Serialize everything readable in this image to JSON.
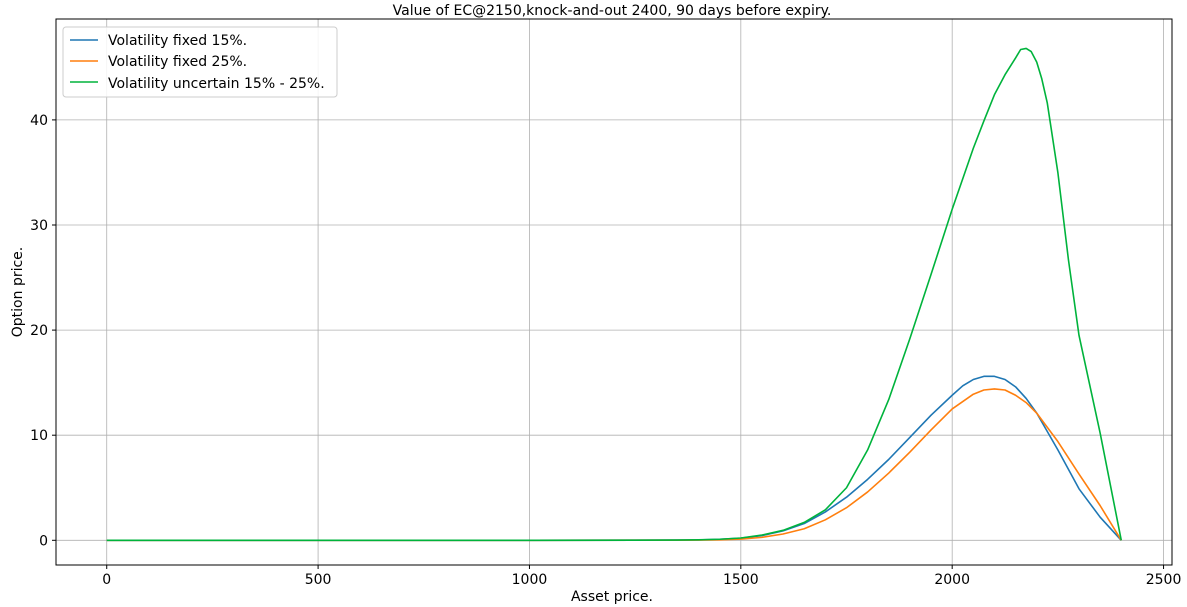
{
  "chart_data": {
    "type": "line",
    "title": "Value of EC@2150,knock-and-out 2400, 90 days before expiry.",
    "xlabel": "Asset price.",
    "ylabel": "Option price.",
    "xlim": [
      -120,
      2520
    ],
    "ylim": [
      -2.35,
      49.6
    ],
    "xticks": [
      0,
      500,
      1000,
      1500,
      2000,
      2500
    ],
    "yticks": [
      0,
      10,
      20,
      30,
      40
    ],
    "grid": true,
    "legend_position": "top-left",
    "series": [
      {
        "name": "Volatility fixed 15%.",
        "color": "#1f77b4",
        "x": [
          0,
          1000,
          1350,
          1400,
          1450,
          1500,
          1550,
          1600,
          1650,
          1700,
          1750,
          1800,
          1850,
          1900,
          1950,
          2000,
          2025,
          2050,
          2075,
          2100,
          2125,
          2150,
          2175,
          2200,
          2250,
          2300,
          2350,
          2400
        ],
        "y": [
          0,
          0,
          0.02,
          0.04,
          0.09,
          0.2,
          0.45,
          0.9,
          1.6,
          2.7,
          4.1,
          5.8,
          7.7,
          9.8,
          11.9,
          13.8,
          14.7,
          15.3,
          15.6,
          15.6,
          15.3,
          14.6,
          13.5,
          12.1,
          8.6,
          4.9,
          2.2,
          0
        ]
      },
      {
        "name": "Volatility fixed 25%.",
        "color": "#ff7f0e",
        "x": [
          0,
          1000,
          1350,
          1400,
          1450,
          1500,
          1550,
          1600,
          1650,
          1700,
          1750,
          1800,
          1850,
          1900,
          1950,
          2000,
          2050,
          2075,
          2100,
          2125,
          2150,
          2175,
          2200,
          2250,
          2300,
          2350,
          2400
        ],
        "y": [
          0,
          0,
          0.01,
          0.02,
          0.05,
          0.12,
          0.28,
          0.6,
          1.1,
          1.95,
          3.1,
          4.6,
          6.4,
          8.4,
          10.5,
          12.5,
          13.9,
          14.3,
          14.4,
          14.3,
          13.8,
          13.1,
          12.1,
          9.4,
          6.3,
          3.3,
          0
        ]
      },
      {
        "name": "Volatility uncertain 15% - 25%.",
        "color": "#00b33c",
        "x": [
          0,
          1000,
          1350,
          1400,
          1450,
          1500,
          1550,
          1600,
          1650,
          1700,
          1750,
          1800,
          1850,
          1900,
          1950,
          2000,
          2050,
          2075,
          2100,
          2125,
          2150,
          2162,
          2175,
          2187,
          2200,
          2212,
          2225,
          2250,
          2275,
          2300,
          2350,
          2400
        ],
        "y": [
          0,
          0,
          0.02,
          0.05,
          0.1,
          0.22,
          0.5,
          0.95,
          1.7,
          2.9,
          5.0,
          8.6,
          13.4,
          19.2,
          25.3,
          31.5,
          37.3,
          39.9,
          42.4,
          44.3,
          45.9,
          46.7,
          46.8,
          46.5,
          45.5,
          43.9,
          41.6,
          35.0,
          26.7,
          19.5,
          10.2,
          0
        ]
      }
    ]
  }
}
